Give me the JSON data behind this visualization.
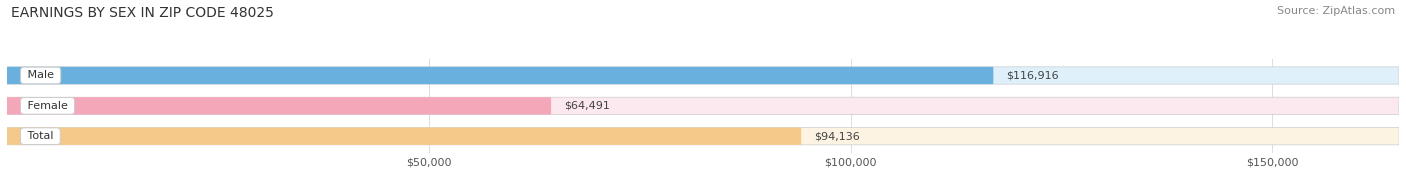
{
  "title": "EARNINGS BY SEX IN ZIP CODE 48025",
  "source": "Source: ZipAtlas.com",
  "categories": [
    "Male",
    "Female",
    "Total"
  ],
  "values": [
    116916,
    64491,
    94136
  ],
  "bar_colors": [
    "#6ab0de",
    "#f4a7b9",
    "#f5c98a"
  ],
  "bar_bg_colors": [
    "#dff0fb",
    "#fce8ef",
    "#fdf3e3"
  ],
  "value_labels": [
    "$116,916",
    "$64,491",
    "$94,136"
  ],
  "x_ticks": [
    50000,
    100000,
    150000
  ],
  "x_tick_labels": [
    "$50,000",
    "$100,000",
    "$150,000"
  ],
  "xmin": 0,
  "xmax": 165000,
  "title_fontsize": 10,
  "source_fontsize": 8,
  "bar_label_fontsize": 8,
  "value_fontsize": 8,
  "figsize": [
    14.06,
    1.96
  ],
  "dpi": 100
}
